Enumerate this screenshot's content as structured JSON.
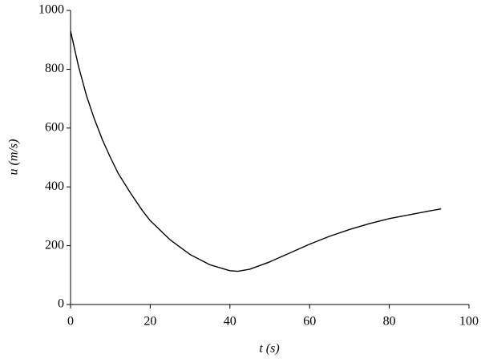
{
  "chart_data": {
    "type": "line",
    "xlabel": "t (s)",
    "ylabel": "u (m/s)",
    "x": [
      0,
      2,
      4,
      6,
      8,
      10,
      12,
      15,
      18,
      20,
      25,
      30,
      35,
      40,
      42,
      45,
      50,
      55,
      60,
      65,
      70,
      75,
      80,
      85,
      90,
      93
    ],
    "series": [
      {
        "name": "u",
        "color": "#000000",
        "values": [
          930,
          810,
          710,
          630,
          560,
          500,
          445,
          380,
          320,
          285,
          220,
          170,
          135,
          115,
          113,
          120,
          145,
          175,
          205,
          232,
          255,
          275,
          292,
          305,
          318,
          325
        ]
      }
    ],
    "xlim": [
      0,
      100
    ],
    "xticks": [
      0,
      20,
      40,
      60,
      80,
      100
    ],
    "ylim": [
      0,
      1000
    ],
    "yticks": [
      0,
      200,
      400,
      600,
      800,
      1000
    ],
    "grid": false
  }
}
